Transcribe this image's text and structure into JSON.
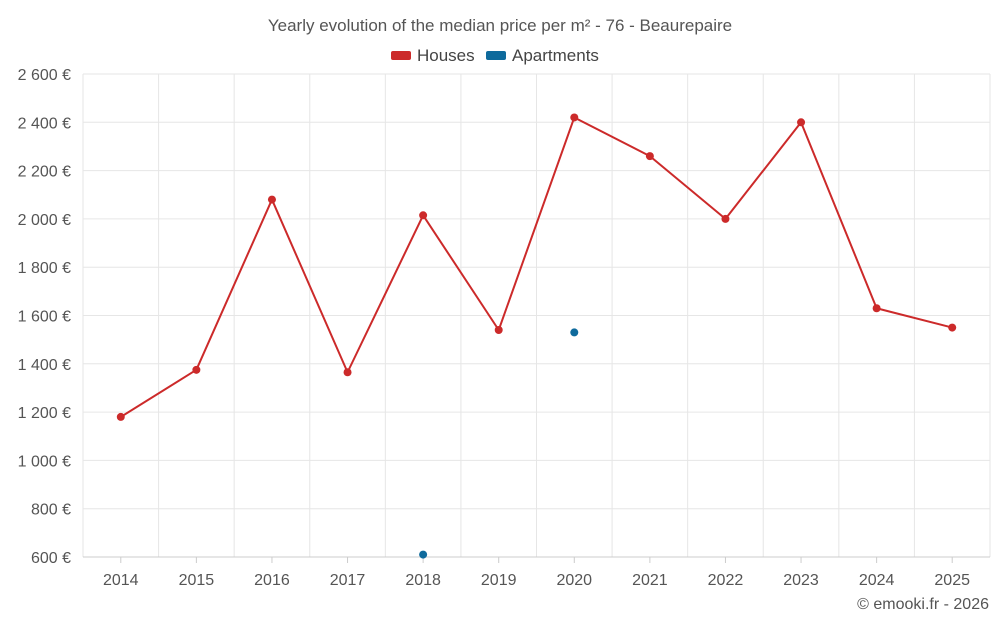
{
  "chart_data": {
    "type": "line",
    "title": "Yearly evolution of the median price per m² - 76 - Beaurepaire",
    "categories": [
      "2014",
      "2015",
      "2016",
      "2017",
      "2018",
      "2019",
      "2020",
      "2021",
      "2022",
      "2023",
      "2024",
      "2025"
    ],
    "ylim": [
      600,
      2600
    ],
    "yticks": [
      600,
      800,
      1000,
      1200,
      1400,
      1600,
      1800,
      2000,
      2200,
      2400,
      2600
    ],
    "ytick_labels": [
      "600 €",
      "800 €",
      "1 000 €",
      "1 200 €",
      "1 400 €",
      "1 600 €",
      "1 800 €",
      "2 000 €",
      "2 200 €",
      "2 400 €",
      "2 600 €"
    ],
    "grid": true,
    "legend_position": "top-center",
    "series": [
      {
        "name": "Houses",
        "color": "#cc2a2a",
        "values": [
          1180,
          1375,
          2080,
          1365,
          2015,
          1540,
          2420,
          2260,
          2000,
          2400,
          1630,
          1550
        ]
      },
      {
        "name": "Apartments",
        "color": "#0e6a9c",
        "values": [
          null,
          null,
          null,
          null,
          610,
          null,
          1530,
          null,
          null,
          null,
          null,
          null
        ]
      }
    ],
    "credit": "© emooki.fr - 2026"
  }
}
